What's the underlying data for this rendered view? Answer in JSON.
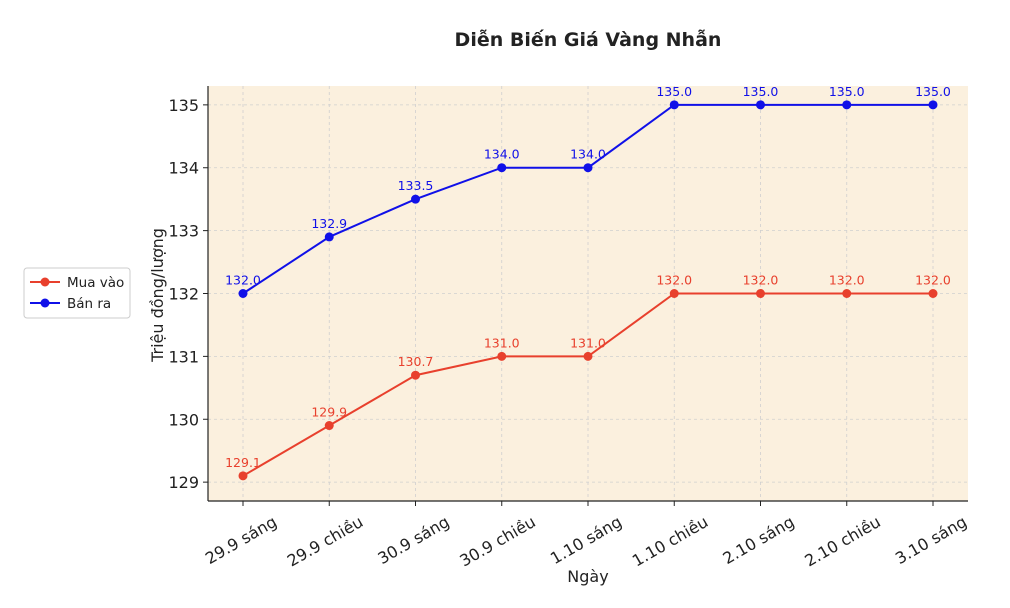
{
  "chart_data": {
    "type": "line",
    "title": "Diễn Biến Giá Vàng Nhẫn",
    "xlabel": "Ngày",
    "ylabel": "Triệu đồng/lượng",
    "categories": [
      "29.9 sáng",
      "29.9 chiều",
      "30.9 sáng",
      "30.9 chiều",
      "1.10 sáng",
      "1.10 chiều",
      "2.10 sáng",
      "2.10 chiều",
      "3.10 sáng"
    ],
    "ylim": [
      128.7,
      135.3
    ],
    "yticks": [
      129,
      130,
      131,
      132,
      133,
      134,
      135
    ],
    "grid": true,
    "legend_position": "left",
    "plot_background": "#fbf0de",
    "series": [
      {
        "name": "Mua vào",
        "color": "#e8402d",
        "values": [
          129.1,
          129.9,
          130.7,
          131.0,
          131.0,
          132.0,
          132.0,
          132.0,
          132.0
        ],
        "labels": [
          "129.1",
          "129.9",
          "130.7",
          "131.0",
          "131.0",
          "132.0",
          "132.0",
          "132.0",
          "132.0"
        ]
      },
      {
        "name": "Bán ra",
        "color": "#1010e8",
        "values": [
          132.0,
          132.9,
          133.5,
          134.0,
          134.0,
          135.0,
          135.0,
          135.0,
          135.0
        ],
        "labels": [
          "132.0",
          "132.9",
          "133.5",
          "134.0",
          "134.0",
          "135.0",
          "135.0",
          "135.0",
          "135.0"
        ]
      }
    ]
  }
}
